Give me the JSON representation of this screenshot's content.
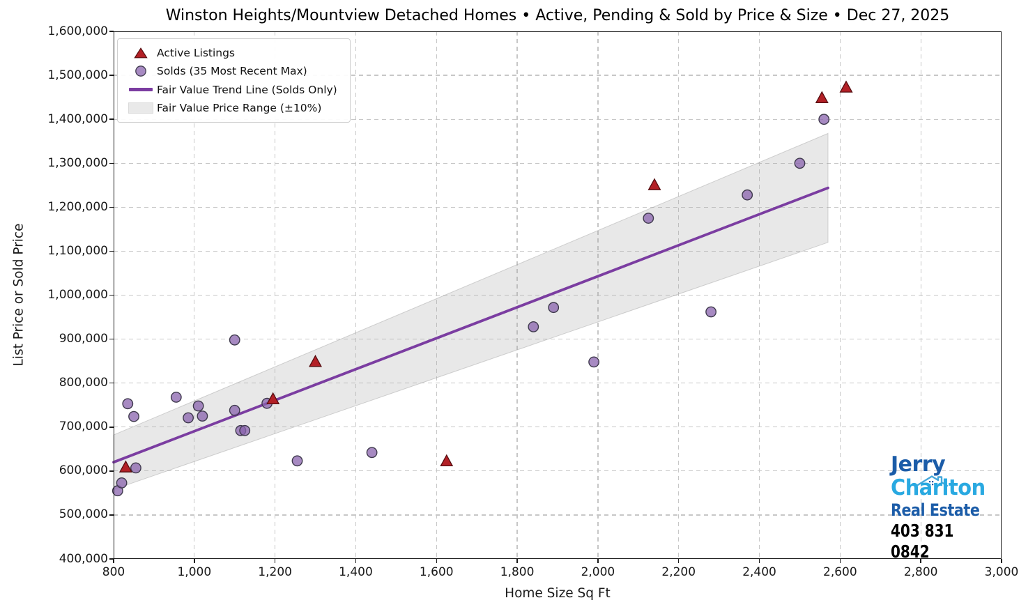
{
  "title": "Winston Heights/Mountview Detached Homes • Active, Pending & Sold by Price & Size • Dec 27, 2025",
  "chart_data": {
    "type": "scatter",
    "title": "Winston Heights/Mountview Detached Homes • Active, Pending & Sold by Price & Size • Dec 27, 2025",
    "xlabel": "Home Size Sq Ft",
    "ylabel": "List Price or Sold Price",
    "xlim": [
      800,
      3000
    ],
    "ylim": [
      400000,
      1600000
    ],
    "grid": true,
    "legend_position": "upper left",
    "x_ticks": [
      800,
      1000,
      1200,
      1400,
      1600,
      1800,
      2000,
      2200,
      2400,
      2600,
      2800,
      3000
    ],
    "x_tick_labels": [
      "800",
      "1,000",
      "1,200",
      "1,400",
      "1,600",
      "1,800",
      "2,000",
      "2,200",
      "2,400",
      "2,600",
      "2,800",
      "3,000"
    ],
    "y_ticks": [
      400000,
      500000,
      600000,
      700000,
      800000,
      900000,
      1000000,
      1100000,
      1200000,
      1300000,
      1400000,
      1500000,
      1600000
    ],
    "y_tick_labels": [
      "400,000",
      "500,000",
      "600,000",
      "700,000",
      "800,000",
      "900,000",
      "1,000,000",
      "1,100,000",
      "1,200,000",
      "1,300,000",
      "1,400,000",
      "1,500,000",
      "1,600,000"
    ],
    "series": [
      {
        "name": "Active Listings",
        "type": "scatter",
        "marker": "triangle-up",
        "fill": "#b32026",
        "edge": "#550d10",
        "points": [
          [
            830,
            608000
          ],
          [
            1195,
            763000
          ],
          [
            1300,
            848000
          ],
          [
            1625,
            622000
          ],
          [
            2140,
            1250000
          ],
          [
            2555,
            1448000
          ],
          [
            2615,
            1472000
          ]
        ]
      },
      {
        "name": "Solds (35 Most Recent Max)",
        "type": "scatter",
        "marker": "circle",
        "fill": "#8a63ae",
        "edge": "#3f3a4d",
        "points": [
          [
            810,
            555000
          ],
          [
            820,
            573000
          ],
          [
            835,
            753000
          ],
          [
            850,
            724000
          ],
          [
            855,
            607000
          ],
          [
            955,
            768000
          ],
          [
            985,
            721000
          ],
          [
            1010,
            748000
          ],
          [
            1020,
            725000
          ],
          [
            1100,
            738000
          ],
          [
            1100,
            898000
          ],
          [
            1115,
            692000
          ],
          [
            1125,
            692000
          ],
          [
            1180,
            754000
          ],
          [
            1255,
            623000
          ],
          [
            1440,
            642000
          ],
          [
            1840,
            928000
          ],
          [
            1890,
            972000
          ],
          [
            1990,
            848000
          ],
          [
            2125,
            1175000
          ],
          [
            2280,
            962000
          ],
          [
            2370,
            1228000
          ],
          [
            2500,
            1300000
          ],
          [
            2560,
            1400000
          ]
        ]
      },
      {
        "name": "Fair Value Trend Line (Solds Only)",
        "type": "line",
        "color": "#7b3da1",
        "points": [
          [
            800,
            620000
          ],
          [
            2570,
            1244000
          ]
        ]
      },
      {
        "name": "Fair Value Price Range (±10%)",
        "type": "band",
        "fill": "#e9e9e9",
        "upper": [
          [
            800,
            682000
          ],
          [
            2570,
            1368000
          ]
        ],
        "lower": [
          [
            800,
            558000
          ],
          [
            2570,
            1120000
          ]
        ]
      }
    ]
  },
  "legend": {
    "items": [
      {
        "label": "Active Listings"
      },
      {
        "label": "Solds (35 Most Recent Max)"
      },
      {
        "label": "Fair Value Trend Line (Solds Only)"
      },
      {
        "label": "Fair Value Price Range (±10%)"
      }
    ]
  },
  "logo": {
    "first_name": "Jerry",
    "last_name": "Charlton",
    "tagline": "Real Estate",
    "phone": "403 831 0842",
    "color_primary": "#1b5ca8",
    "color_secondary": "#29a9e1",
    "phone_color": "#000000"
  }
}
